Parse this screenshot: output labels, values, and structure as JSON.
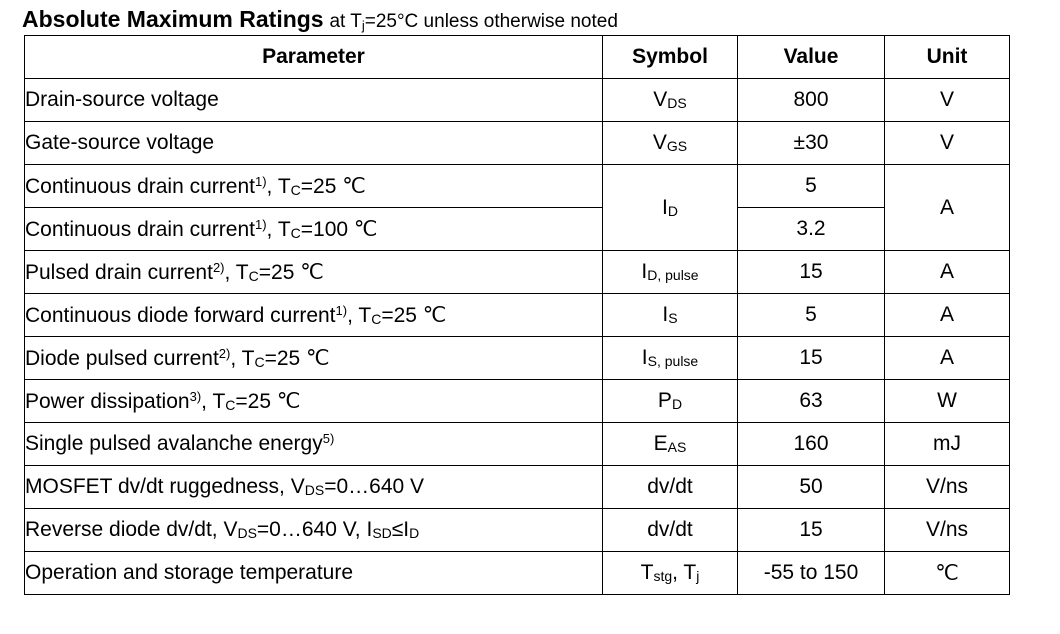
{
  "heading": {
    "title": "Absolute Maximum Ratings",
    "note_prefix": "at T",
    "note_sub": "j",
    "note_suffix": "=25°C unless otherwise noted"
  },
  "columns": {
    "parameter": "Parameter",
    "symbol": "Symbol",
    "value": "Value",
    "unit": "Unit"
  },
  "rows": [
    {
      "name": "Drain-source voltage",
      "sup": "",
      "cond": "",
      "sym": "V",
      "sym_sub": "DS",
      "sym_tail": "",
      "sym_tail_sub": "",
      "value": "800",
      "unit": "V"
    },
    {
      "name": "Gate-source voltage",
      "sup": "",
      "cond": "",
      "sym": "V",
      "sym_sub": "GS",
      "sym_tail": "",
      "sym_tail_sub": "",
      "value": "±30",
      "unit": "V"
    },
    {
      "name": "Continuous drain current",
      "sup": "1)",
      "cond": ", T",
      "cond_sub": "C",
      "cond_tail": "=25 ℃",
      "sym": "I",
      "sym_sub": "D",
      "value": "5",
      "unit": "A"
    },
    {
      "name": "Continuous drain current",
      "sup": "1)",
      "cond": ", T",
      "cond_sub": "C",
      "cond_tail": "=100 ℃",
      "value": "3.2"
    },
    {
      "name": "Pulsed drain current",
      "sup": "2)",
      "cond": ", T",
      "cond_sub": "C",
      "cond_tail": "=25 ℃",
      "sym": "I",
      "sym_sub": "D, pulse",
      "value": "15",
      "unit": "A"
    },
    {
      "name": "Continuous diode forward current",
      "sup": "1)",
      "cond": ", T",
      "cond_sub": "C",
      "cond_tail": "=25 ℃",
      "sym": "I",
      "sym_sub": "S",
      "value": "5",
      "unit": "A"
    },
    {
      "name": "Diode pulsed current",
      "sup": "2)",
      "cond": ", T",
      "cond_sub": "C",
      "cond_tail": "=25 ℃",
      "sym": "I",
      "sym_sub": "S, pulse",
      "value": "15",
      "unit": "A"
    },
    {
      "name": "Power dissipation",
      "sup": "3)",
      "cond": ", T",
      "cond_sub": "C",
      "cond_tail": "=25 ℃",
      "sym": "P",
      "sym_sub": "D",
      "value": "63",
      "unit": "W"
    },
    {
      "name": "Single pulsed avalanche energy",
      "sup": "5)",
      "sym": "E",
      "sym_sub": "AS",
      "value": "160",
      "unit": "mJ"
    },
    {
      "name": "MOSFET dv/dt ruggedness, V",
      "name_sub": "DS",
      "name_tail": "=0…640 V",
      "sym": "dv/dt",
      "value": "50",
      "unit": "V/ns"
    },
    {
      "name": "Reverse diode dv/dt, V",
      "name_sub": "DS",
      "name_tail": "=0…640 V, I",
      "name_sub2": "SD",
      "name_tail2": "≤I",
      "name_sub3": "D",
      "sym": "dv/dt",
      "value": "15",
      "unit": "V/ns"
    },
    {
      "name": "Operation and storage temperature",
      "sym": "T",
      "sym_sub": "stg",
      "sym_tail": ", T",
      "sym_tail_sub": "j",
      "value": "-55 to 150",
      "unit": "℃"
    }
  ]
}
